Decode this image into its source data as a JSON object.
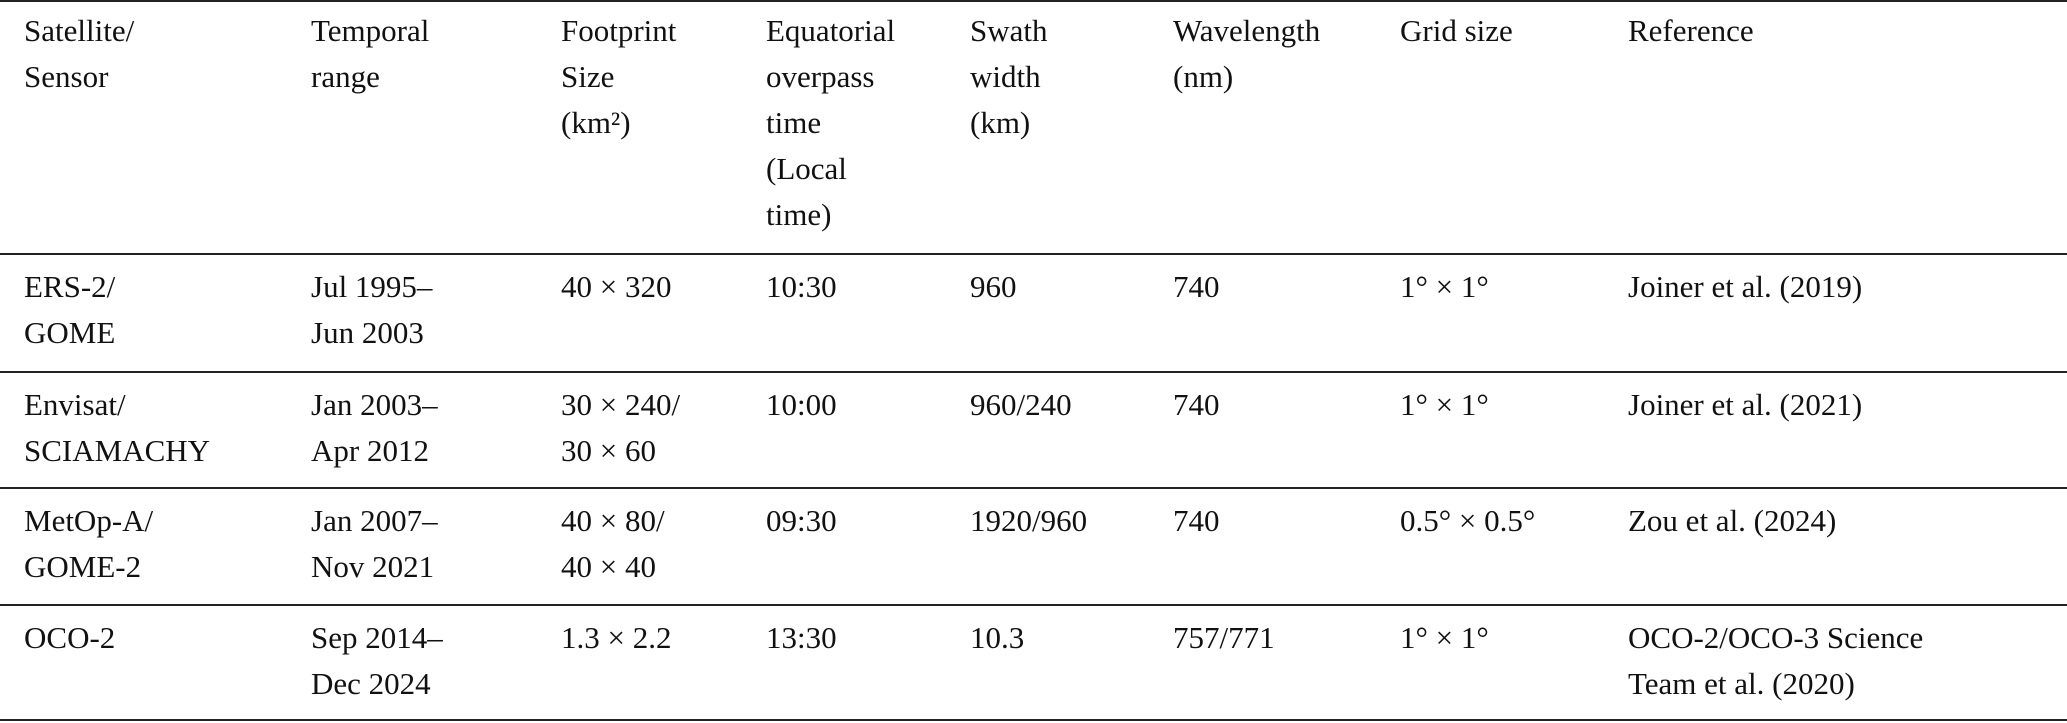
{
  "table": {
    "header": [
      [
        "Satellite/",
        "Sensor"
      ],
      [
        "Temporal",
        "range"
      ],
      [
        "Footprint",
        "Size",
        "(km²)"
      ],
      [
        "Equatorial",
        "overpass",
        "time",
        "(Local",
        "time)"
      ],
      [
        "Swath",
        "width",
        "(km)"
      ],
      [
        "Wavelength",
        "(nm)"
      ],
      [
        "Grid size"
      ],
      [
        "Reference"
      ]
    ],
    "rows": [
      [
        [
          "ERS-2/",
          "GOME"
        ],
        [
          "Jul 1995–",
          "Jun 2003"
        ],
        [
          "40 × 320"
        ],
        [
          "10:30"
        ],
        [
          "960"
        ],
        [
          "740"
        ],
        [
          "1° × 1°"
        ],
        [
          "Joiner et al. (2019)"
        ]
      ],
      [
        [
          "Envisat/",
          "SCIAMACHY"
        ],
        [
          "Jan 2003–",
          "Apr 2012"
        ],
        [
          "30 × 240/",
          "30 × 60"
        ],
        [
          "10:00"
        ],
        [
          "960/240"
        ],
        [
          "740"
        ],
        [
          "1° × 1°"
        ],
        [
          "Joiner et al. (2021)"
        ]
      ],
      [
        [
          "MetOp-A/",
          "GOME-2"
        ],
        [
          "Jan 2007–",
          "Nov 2021"
        ],
        [
          "40 × 80/",
          "40 × 40"
        ],
        [
          "09:30"
        ],
        [
          "1920/960"
        ],
        [
          "740"
        ],
        [
          "0.5° × 0.5°"
        ],
        [
          "Zou et al. (2024)"
        ]
      ],
      [
        [
          "OCO-2"
        ],
        [
          "Sep 2014–",
          "Dec 2024"
        ],
        [
          "1.3 × 2.2"
        ],
        [
          "13:30"
        ],
        [
          "10.3"
        ],
        [
          "757/771"
        ],
        [
          "1° × 1°"
        ],
        [
          "OCO-2/OCO-3 Science",
          "Team et al. (2020)"
        ]
      ]
    ]
  }
}
